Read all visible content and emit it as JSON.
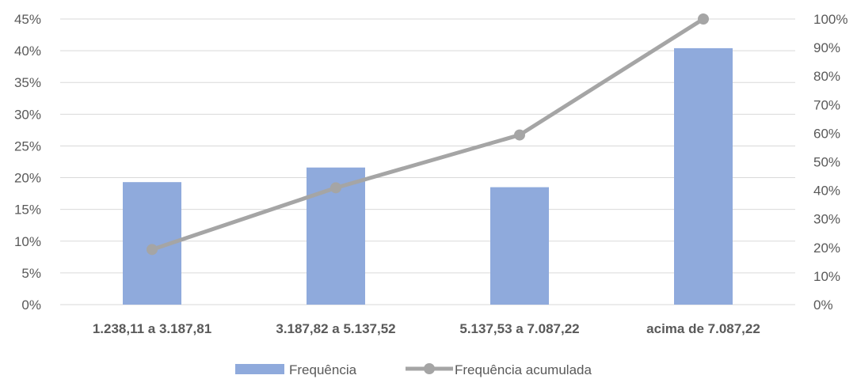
{
  "chart_data": {
    "type": "bar",
    "categories": [
      "1.238,11 a 3.187,81",
      "3.187,82 a 5.137,52",
      "5.137,53 a 7.087,22",
      "acima de 7.087,22"
    ],
    "series": [
      {
        "name": "Frequência",
        "type": "bar",
        "axis": "left",
        "values": [
          19.3,
          21.6,
          18.5,
          40.4
        ]
      },
      {
        "name": "Frequência acumulada",
        "type": "line",
        "axis": "right",
        "values": [
          19.3,
          40.9,
          59.4,
          100
        ]
      }
    ],
    "y_left": {
      "range": [
        0,
        45
      ],
      "step": 5,
      "tick_labels": [
        "0%",
        "5%",
        "10%",
        "15%",
        "20%",
        "25%",
        "30%",
        "35%",
        "40%",
        "45%"
      ]
    },
    "y_right": {
      "range": [
        0,
        100
      ],
      "step": 10,
      "tick_labels": [
        "0%",
        "10%",
        "20%",
        "30%",
        "40%",
        "50%",
        "60%",
        "70%",
        "80%",
        "90%",
        "100%"
      ]
    },
    "grid": true,
    "legend": {
      "position": "bottom",
      "entries": [
        "Frequência",
        "Frequência acumulada"
      ]
    },
    "colors": {
      "bar": "#8faadc",
      "line": "#a5a5a5",
      "grid": "#d9d9d9",
      "text": "#595959"
    }
  }
}
